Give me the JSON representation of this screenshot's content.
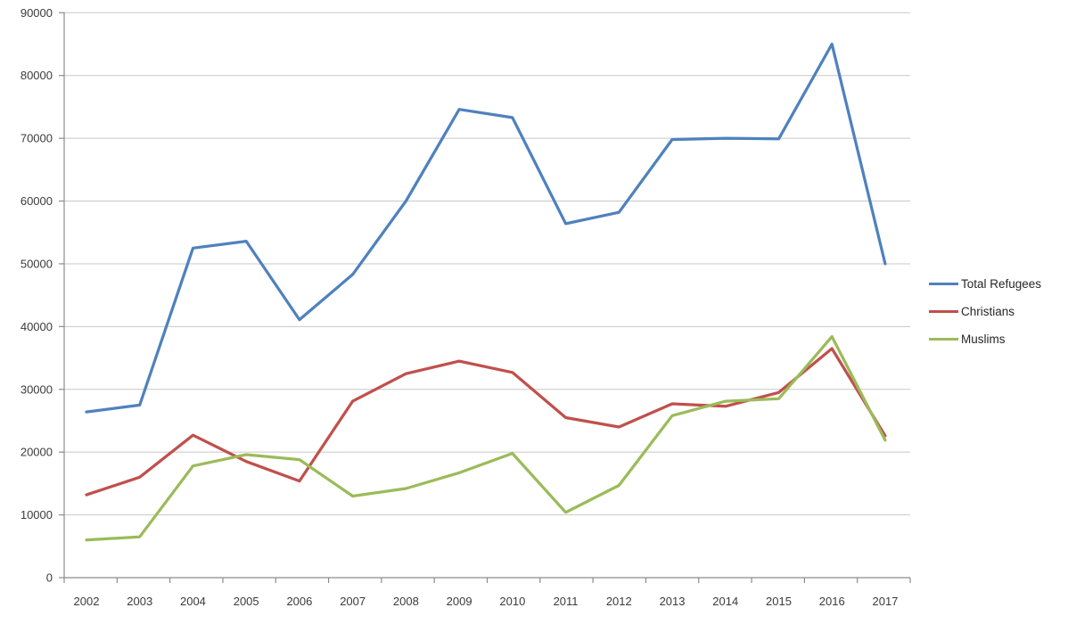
{
  "chart_data": {
    "type": "line",
    "title": "",
    "categories": [
      "2002",
      "2003",
      "2004",
      "2005",
      "2006",
      "2007",
      "2008",
      "2009",
      "2010",
      "2011",
      "2012",
      "2013",
      "2014",
      "2015",
      "2016",
      "2017"
    ],
    "series": [
      {
        "name": "Total Refugees",
        "color": "#4F81BD",
        "values": [
          26400,
          27500,
          52500,
          53600,
          41100,
          48300,
          60000,
          74600,
          73300,
          56400,
          58200,
          69800,
          70000,
          69900,
          85000,
          50000
        ]
      },
      {
        "name": "Christians",
        "color": "#C0504D",
        "values": [
          13200,
          16000,
          22700,
          18500,
          15400,
          28100,
          32500,
          34500,
          32700,
          25500,
          24000,
          27700,
          27300,
          29500,
          36500,
          22600
        ]
      },
      {
        "name": "Muslims",
        "color": "#9BBB59",
        "values": [
          6000,
          6500,
          17800,
          19600,
          18800,
          13000,
          14200,
          16700,
          19800,
          10400,
          14700,
          25800,
          28100,
          28500,
          38400,
          21900
        ]
      }
    ],
    "xlabel": "",
    "ylabel": "",
    "ylim": [
      0,
      90000
    ],
    "y_tick_step": 10000,
    "y_tick_labels": [
      "0",
      "10000",
      "20000",
      "30000",
      "40000",
      "50000",
      "60000",
      "70000",
      "80000",
      "90000"
    ],
    "grid": true,
    "legend_position": "right"
  },
  "colors": {
    "background": "#FFFFFF",
    "gridline": "#C8C8C8",
    "axis": "#8C8C8C",
    "tick_label": "#3B3B3B",
    "legend_text": "#262626"
  }
}
